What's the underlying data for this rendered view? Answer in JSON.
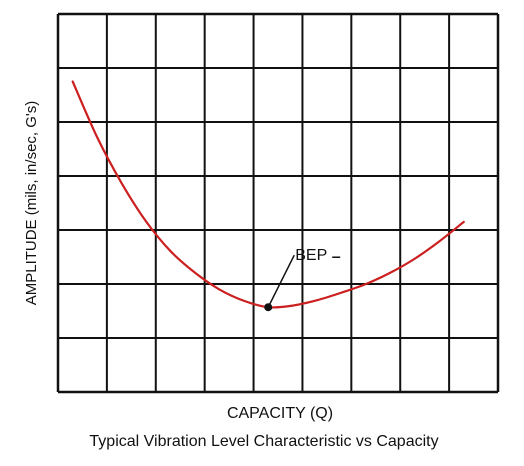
{
  "chart_data": {
    "type": "line",
    "title": "",
    "subtitle": "",
    "caption": "Typical Vibration Level Characteristic vs Capacity",
    "xlabel": "CAPACITY (Q)",
    "ylabel": "AMPLITUDE (mils, in/sec, G's)",
    "grid": true,
    "grid_divisions": {
      "x": 9,
      "y": 7
    },
    "xlim": [
      0,
      9
    ],
    "ylim": [
      0,
      7
    ],
    "series": [
      {
        "color": "#cc1f1f",
        "x": [
          0.3,
          0.8,
          1.3,
          1.8,
          2.3,
          2.8,
          3.3,
          3.8,
          4.3,
          4.8,
          5.3,
          5.8,
          6.3,
          6.8,
          7.3,
          7.8,
          8.3
        ],
        "y": [
          5.75,
          4.72,
          3.87,
          3.16,
          2.61,
          2.21,
          1.9,
          1.69,
          1.57,
          1.6,
          1.7,
          1.84,
          2.0,
          2.21,
          2.47,
          2.79,
          3.15
        ]
      }
    ],
    "annotations": [
      {
        "text": "BEP",
        "x": 4.3,
        "y": 1.57,
        "marker": "dot"
      }
    ]
  },
  "colors": {
    "curve": "#cc1f1f",
    "grid": "#111111",
    "text": "#111111"
  }
}
